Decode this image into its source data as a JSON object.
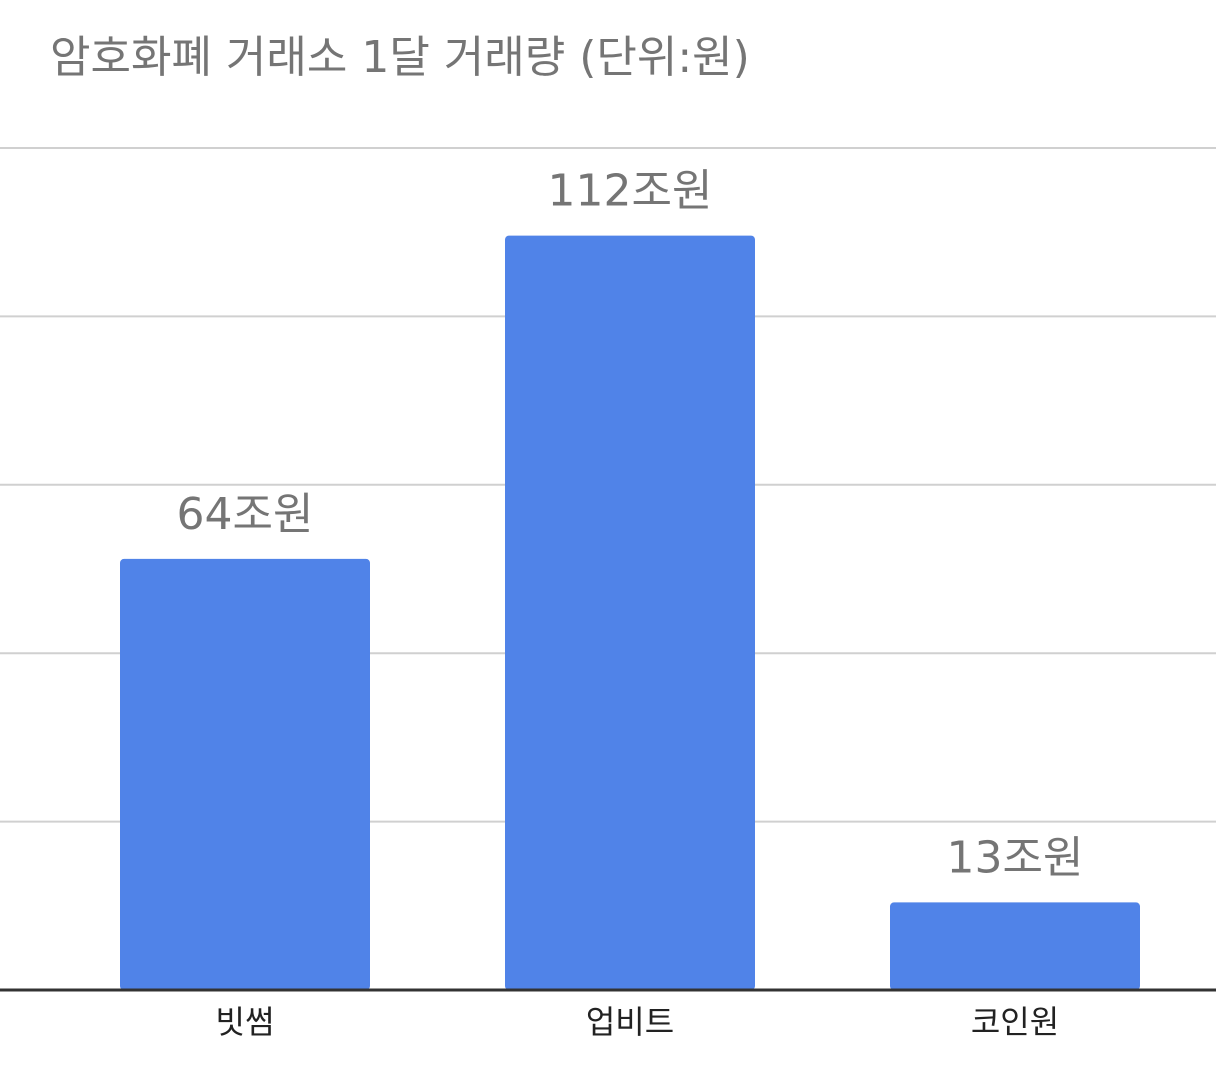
{
  "chart_data": {
    "type": "bar",
    "title": "암호화폐 거래소 1달 거래량 (단위:원)",
    "categories": [
      "빗썸",
      "업비트",
      "코인원"
    ],
    "values": [
      64,
      112,
      13
    ],
    "value_labels": [
      "64조원",
      "112조원",
      "13조원"
    ],
    "color": "#5083e8",
    "ylim": [
      0,
      125
    ],
    "yticks": [
      0,
      25,
      50,
      75,
      100,
      125
    ],
    "grid": true
  }
}
